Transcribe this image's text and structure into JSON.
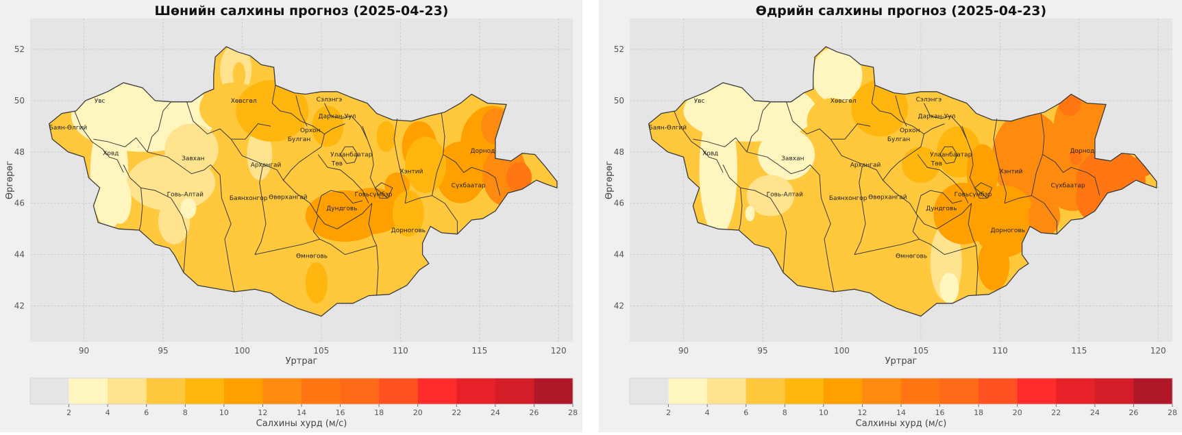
{
  "colors": {
    "ocean": "#e5e5e5",
    "panel_bg": "#f0f0f0",
    "grid": "#c8c8c8",
    "border": "#3a3a3a",
    "scale": [
      "#e5e5e5",
      "#fff5bf",
      "#ffe38e",
      "#ffc83d",
      "#ffb710",
      "#ff9f00",
      "#ff8a10",
      "#ff7612",
      "#ff6a18",
      "#ff5220",
      "#ff2c2c",
      "#e62228",
      "#d31e2a",
      "#b0182a"
    ]
  },
  "maps": [
    {
      "title": "Шөнийн салхины прогноз (2025-04-23)",
      "xlabel": "Уртраг",
      "ylabel": "Өргөрөг",
      "x_ticks": [
        "90",
        "95",
        "100",
        "105",
        "110",
        "115",
        "120"
      ],
      "y_ticks": [
        "52",
        "50",
        "48",
        "46",
        "44",
        "42"
      ],
      "colorbar_label": "Салхины хурд (м/с)",
      "colorbar_ticks": [
        "2",
        "4",
        "6",
        "8",
        "10",
        "12",
        "14",
        "16",
        "18",
        "20",
        "22",
        "24",
        "26",
        "28"
      ]
    },
    {
      "title": "Өдрийн салхины прогноз (2025-04-23)",
      "xlabel": "Уртраг",
      "ylabel": "Өргөрөг",
      "x_ticks": [
        "90",
        "95",
        "100",
        "105",
        "110",
        "115",
        "120"
      ],
      "y_ticks": [
        "52",
        "50",
        "48",
        "46",
        "44",
        "42"
      ],
      "colorbar_label": "Салхины хурд (м/с)",
      "colorbar_ticks": [
        "2",
        "4",
        "6",
        "8",
        "10",
        "12",
        "14",
        "16",
        "18",
        "20",
        "22",
        "24",
        "26",
        "28"
      ]
    }
  ],
  "regions": [
    {
      "label": "Увс",
      "lon": 91.0,
      "lat": 50.0,
      "night": 1,
      "day": 1
    },
    {
      "label": "Баян-Өлгий",
      "lon": 89.0,
      "lat": 48.95,
      "night": 3,
      "day": 3
    },
    {
      "label": "Ховд",
      "lon": 91.7,
      "lat": 47.95,
      "night": 1,
      "day": 1
    },
    {
      "label": "Завхан",
      "lon": 96.9,
      "lat": 47.75,
      "night": 2,
      "day": 1
    },
    {
      "label": "Говь-Алтай",
      "lon": 96.4,
      "lat": 46.35,
      "night": 2,
      "day": 2
    },
    {
      "label": "Хөвсгөл",
      "lon": 100.1,
      "lat": 50.0,
      "night": 3,
      "day": 3
    },
    {
      "label": "Архангай",
      "lon": 101.5,
      "lat": 47.5,
      "night": 3,
      "day": 3
    },
    {
      "label": "Булган",
      "lon": 103.6,
      "lat": 48.5,
      "night": 3,
      "day": 3
    },
    {
      "label": "Орхон",
      "lon": 104.3,
      "lat": 48.85,
      "night": 4,
      "day": 3
    },
    {
      "label": "Сэлэнгэ",
      "lon": 105.5,
      "lat": 50.05,
      "night": 3,
      "day": 3
    },
    {
      "label": "Дархан-Уул",
      "lon": 106.0,
      "lat": 49.4,
      "night": 3,
      "day": 3
    },
    {
      "label": "Төв",
      "lon": 106.0,
      "lat": 47.55,
      "night": 3,
      "day": 4
    },
    {
      "label": "Улаанбаатар",
      "lon": 106.9,
      "lat": 47.9,
      "night": 4,
      "day": 4
    },
    {
      "label": "Баянхонгор",
      "lon": 100.4,
      "lat": 46.2,
      "night": 2,
      "day": 3
    },
    {
      "label": "Өвөрхангай",
      "lon": 102.9,
      "lat": 46.25,
      "night": 3,
      "day": 3
    },
    {
      "label": "Дундговь",
      "lon": 106.3,
      "lat": 45.8,
      "night": 5,
      "day": 4
    },
    {
      "label": "Говьсүмбэр",
      "lon": 108.3,
      "lat": 46.35,
      "night": 4,
      "day": 5
    },
    {
      "label": "Хэнтий",
      "lon": 110.7,
      "lat": 47.25,
      "night": 4,
      "day": 6
    },
    {
      "label": "Дорноговь",
      "lon": 110.5,
      "lat": 44.95,
      "night": 4,
      "day": 5
    },
    {
      "label": "Өмнөговь",
      "lon": 104.4,
      "lat": 43.95,
      "night": 3,
      "day": 3
    },
    {
      "label": "Сүхбаатар",
      "lon": 114.3,
      "lat": 46.7,
      "night": 4,
      "day": 6
    },
    {
      "label": "Дорнод",
      "lon": 115.2,
      "lat": 48.05,
      "night": 4,
      "day": 6
    }
  ]
}
